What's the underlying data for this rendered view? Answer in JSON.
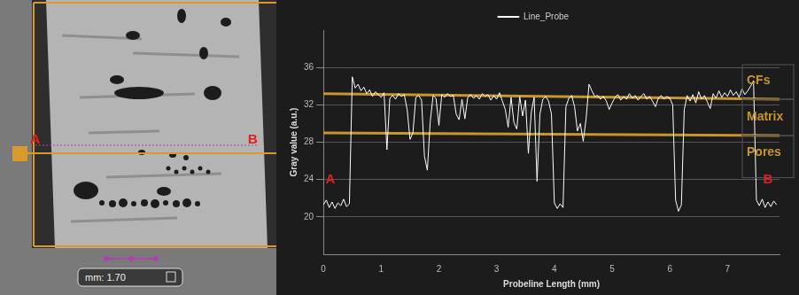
{
  "chart_data": {
    "type": "line",
    "x": [
      0,
      0.05,
      0.1,
      0.15,
      0.2,
      0.25,
      0.3,
      0.35,
      0.4,
      0.45,
      0.5,
      0.55,
      0.6,
      0.65,
      0.7,
      0.75,
      0.8,
      0.85,
      0.9,
      0.95,
      1.0,
      1.05,
      1.1,
      1.15,
      1.2,
      1.25,
      1.3,
      1.35,
      1.4,
      1.45,
      1.5,
      1.55,
      1.6,
      1.65,
      1.7,
      1.75,
      1.8,
      1.85,
      1.9,
      1.95,
      2.0,
      2.05,
      2.1,
      2.15,
      2.2,
      2.25,
      2.3,
      2.35,
      2.4,
      2.45,
      2.5,
      2.55,
      2.6,
      2.65,
      2.7,
      2.75,
      2.8,
      2.85,
      2.9,
      2.95,
      3.0,
      3.05,
      3.1,
      3.15,
      3.2,
      3.25,
      3.3,
      3.35,
      3.4,
      3.45,
      3.5,
      3.55,
      3.6,
      3.65,
      3.7,
      3.75,
      3.8,
      3.85,
      3.9,
      3.95,
      4.0,
      4.05,
      4.1,
      4.15,
      4.2,
      4.25,
      4.3,
      4.35,
      4.4,
      4.45,
      4.5,
      4.55,
      4.6,
      4.65,
      4.7,
      4.75,
      4.8,
      4.85,
      4.9,
      4.95,
      5.0,
      5.05,
      5.1,
      5.15,
      5.2,
      5.25,
      5.3,
      5.35,
      5.4,
      5.45,
      5.5,
      5.55,
      5.6,
      5.65,
      5.7,
      5.75,
      5.8,
      5.85,
      5.9,
      5.95,
      6.0,
      6.05,
      6.1,
      6.15,
      6.2,
      6.25,
      6.3,
      6.35,
      6.4,
      6.45,
      6.5,
      6.55,
      6.6,
      6.65,
      6.7,
      6.75,
      6.8,
      6.85,
      6.9,
      6.95,
      7.0,
      7.05,
      7.1,
      7.15,
      7.2,
      7.25,
      7.3,
      7.35,
      7.4,
      7.45,
      7.5,
      7.55,
      7.6,
      7.65,
      7.7,
      7.75,
      7.8,
      7.85
    ],
    "series": [
      {
        "name": "Line_Probe",
        "color": "#ffffff",
        "values": [
          21.3,
          21.8,
          21.0,
          21.6,
          20.9,
          21.5,
          21.2,
          21.9,
          21.1,
          21.4,
          35.0,
          33.8,
          34.2,
          33.5,
          33.9,
          33.2,
          33.6,
          32.9,
          33.4,
          33.1,
          32.8,
          33.3,
          27.2,
          32.7,
          33.0,
          32.6,
          33.2,
          32.9,
          33.1,
          31.5,
          28.3,
          29.0,
          32.8,
          33.0,
          32.5,
          26.5,
          25.0,
          30.2,
          33.0,
          32.7,
          29.8,
          33.1,
          32.8,
          33.2,
          32.9,
          33.0,
          31.0,
          30.4,
          32.6,
          30.5,
          32.8,
          33.1,
          32.7,
          33.0,
          32.6,
          33.2,
          32.9,
          33.1,
          32.5,
          33.0,
          32.6,
          33.3,
          32.4,
          31.5,
          29.6,
          32.8,
          30.1,
          29.4,
          32.9,
          30.8,
          32.5,
          26.8,
          31.2,
          32.8,
          23.8,
          31.0,
          32.6,
          32.9,
          32.4,
          31.0,
          21.5,
          20.9,
          21.4,
          21.0,
          31.8,
          32.7,
          33.0,
          31.8,
          29.2,
          30.0,
          28.1,
          30.5,
          34.2,
          33.5,
          32.9,
          33.0,
          32.6,
          32.9,
          32.4,
          31.5,
          32.2,
          32.8,
          33.1,
          32.5,
          32.9,
          32.6,
          33.2,
          32.7,
          33.0,
          32.5,
          32.9,
          33.2,
          32.6,
          32.9,
          32.4,
          31.8,
          32.7,
          33.0,
          32.6,
          32.9,
          32.7,
          32.0,
          21.8,
          20.6,
          21.3,
          31.5,
          33.0,
          32.4,
          33.1,
          32.2,
          33.4,
          32.6,
          33.0,
          32.3,
          31.6,
          33.2,
          32.7,
          33.5,
          32.8,
          33.3,
          32.9,
          33.6,
          33.0,
          33.4,
          32.8,
          33.7,
          33.1,
          33.5,
          34.0,
          34.6,
          21.8,
          21.2,
          21.9,
          21.0,
          21.6,
          21.1,
          21.7,
          21.3
        ]
      }
    ],
    "x_label": "Probeline Length (mm)",
    "y_label": "Gray value (a.u.)",
    "xlim": [
      0,
      7.9
    ],
    "xticks": [
      0,
      1,
      2,
      3,
      4,
      5,
      6,
      7
    ],
    "ylim": [
      16,
      40
    ],
    "yticks": [
      20,
      24,
      28,
      32,
      36
    ],
    "grid": "y",
    "legend": "top",
    "annotations": {
      "lines": [
        {
          "x": [
            0,
            7.9
          ],
          "y": [
            33.2,
            32.6
          ],
          "color": "#c8962c"
        },
        {
          "x": [
            0,
            7.9
          ],
          "y": [
            29.0,
            28.7
          ],
          "color": "#c8962c"
        }
      ],
      "band_labels": [
        "CFs",
        "Matrix",
        "Pores"
      ],
      "band_color": "#c8962c",
      "point_labels": [
        {
          "text": "A",
          "x": 0.12,
          "y": 24.0,
          "color": "#e0201c"
        },
        {
          "text": "B",
          "x": 7.7,
          "y": 24.0,
          "color": "#e0201c"
        }
      ]
    }
  },
  "image_panel": {
    "markers": [
      "A",
      "B"
    ],
    "marker_color": "#e0201c",
    "scale_label": "mm: 1.70"
  }
}
